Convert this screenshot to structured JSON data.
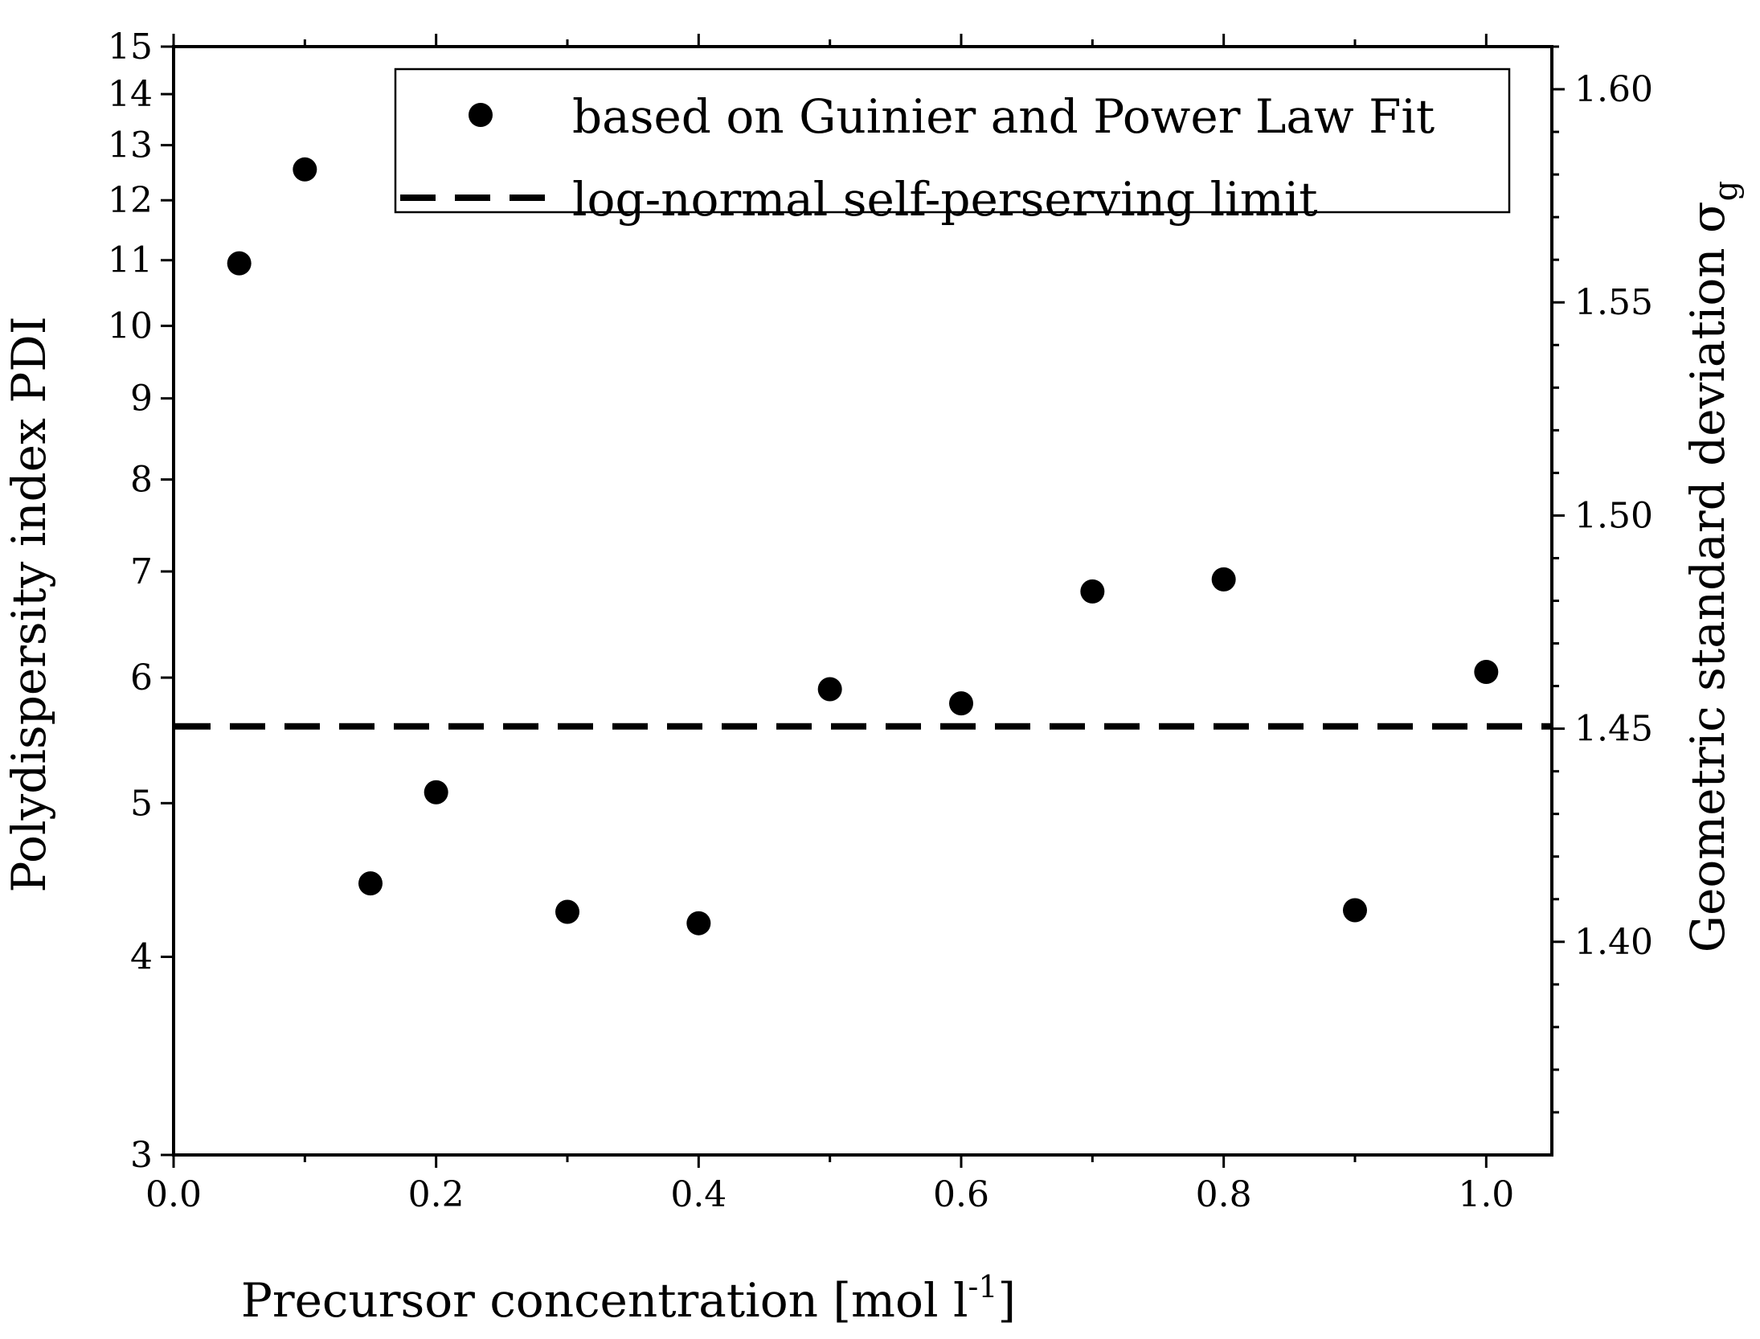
{
  "chart_data": {
    "type": "scatter",
    "x_axis": {
      "label": "Precursor concentration [mol l",
      "label_sup": "-1",
      "label_end": "]",
      "range": [
        0.0,
        1.05
      ],
      "ticks": [
        0.0,
        0.2,
        0.4,
        0.6,
        0.8,
        1.0
      ],
      "tick_labels": [
        "0.0",
        "0.2",
        "0.4",
        "0.6",
        "0.8",
        "1.0"
      ]
    },
    "y_axis_left": {
      "label": "Polydispersity index PDI",
      "scale": "log",
      "range": [
        3,
        15
      ],
      "ticks": [
        3,
        4,
        5,
        6,
        7,
        8,
        9,
        10,
        11,
        12,
        13,
        14,
        15
      ],
      "tick_labels": [
        "3",
        "4",
        "5",
        "6",
        "7",
        "8",
        "9",
        "10",
        "11",
        "12",
        "13",
        "14",
        "15"
      ]
    },
    "y_axis_right": {
      "label": "Geometric standard deviation σ",
      "label_sub": "g",
      "range": [
        1.35,
        1.61
      ],
      "ticks": [
        1.4,
        1.45,
        1.5,
        1.55,
        1.6
      ],
      "tick_labels": [
        "1.40",
        "1.45",
        "1.50",
        "1.55",
        "1.60"
      ]
    },
    "series": [
      {
        "name": "based on Guinier and Power Law Fit",
        "style": "marker",
        "color": "#000000",
        "x": [
          0.05,
          0.1,
          0.15,
          0.2,
          0.3,
          0.4,
          0.5,
          0.6,
          0.7,
          0.8,
          0.9,
          1.0
        ],
        "y": [
          10.95,
          12.55,
          4.45,
          5.08,
          4.27,
          4.2,
          5.9,
          5.78,
          6.8,
          6.92,
          4.28,
          6.05
        ]
      },
      {
        "name": "log-normal self-perserving limit",
        "style": "dashed-line",
        "color": "#000000",
        "y_constant": 5.59
      }
    ],
    "legend_position": "top-right"
  }
}
